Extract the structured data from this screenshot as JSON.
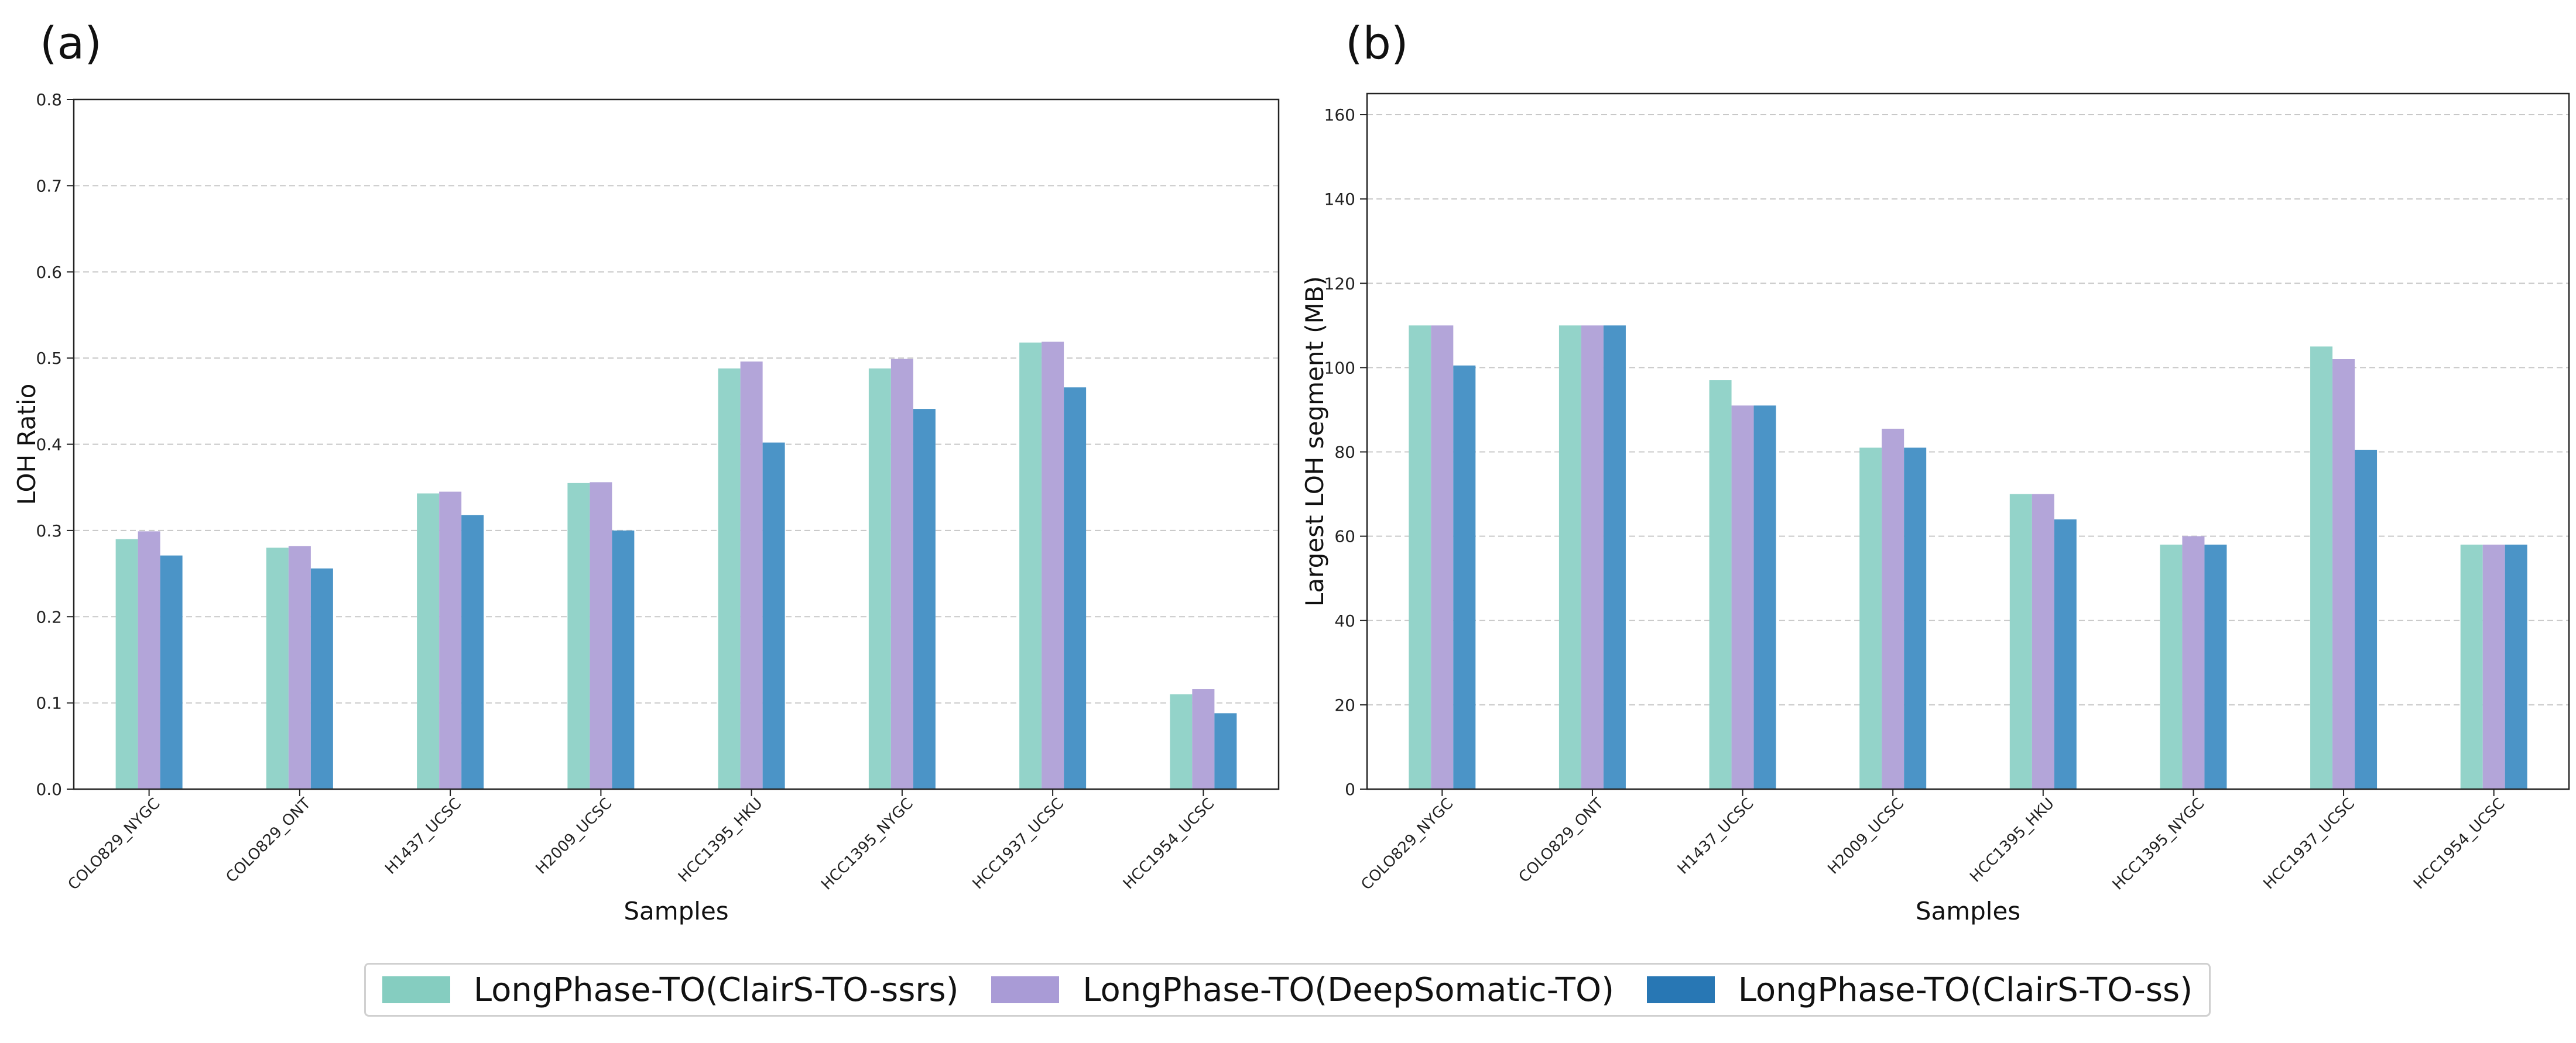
{
  "chart_data": [
    {
      "panel_label": "(a)",
      "type": "bar",
      "xlabel": "Samples",
      "ylabel": "LOH Ratio",
      "ylim": [
        0,
        0.8
      ],
      "yticks": [
        "0.0",
        "0.1",
        "0.2",
        "0.3",
        "0.4",
        "0.5",
        "0.6",
        "0.7",
        "0.8"
      ],
      "grid": "horizontal dashed",
      "categories": [
        "COLO829_NYGC",
        "COLO829_ONT",
        "H1437_UCSC",
        "H2009_UCSC",
        "HCC1395_HKU",
        "HCC1395_NYGC",
        "HCC1937_UCSC",
        "HCC1954_UCSC"
      ],
      "series": [
        {
          "name": "LongPhase-TO(ClairS-TO-ssrs)",
          "color": "#93d3c9",
          "values": [
            0.29,
            0.28,
            0.343,
            0.355,
            0.488,
            0.488,
            0.518,
            0.11
          ]
        },
        {
          "name": "LongPhase-TO(DeepSomatic-TO)",
          "color": "#b3a5d9",
          "values": [
            0.299,
            0.282,
            0.345,
            0.356,
            0.496,
            0.499,
            0.519,
            0.116
          ]
        },
        {
          "name": "LongPhase-TO(ClairS-TO-ss)",
          "color": "#4b94c7",
          "values": [
            0.271,
            0.256,
            0.318,
            0.3,
            0.402,
            0.441,
            0.466,
            0.088
          ]
        }
      ]
    },
    {
      "panel_label": "(b)",
      "type": "bar",
      "xlabel": "Samples",
      "ylabel": "Largest LOH segment (MB)",
      "ylim": [
        0,
        165
      ],
      "yticks": [
        "0",
        "20",
        "40",
        "60",
        "80",
        "100",
        "120",
        "140",
        "160"
      ],
      "grid": "horizontal dashed",
      "categories": [
        "COLO829_NYGC",
        "COLO829_ONT",
        "H1437_UCSC",
        "H2009_UCSC",
        "HCC1395_HKU",
        "HCC1395_NYGC",
        "HCC1937_UCSC",
        "HCC1954_UCSC"
      ],
      "series": [
        {
          "name": "LongPhase-TO(ClairS-TO-ssrs)",
          "color": "#93d3c9",
          "values": [
            110,
            110,
            97,
            81,
            70,
            58,
            105,
            58
          ]
        },
        {
          "name": "LongPhase-TO(DeepSomatic-TO)",
          "color": "#b3a5d9",
          "values": [
            110,
            110,
            91,
            85.5,
            70,
            60,
            102,
            58
          ]
        },
        {
          "name": "LongPhase-TO(ClairS-TO-ss)",
          "color": "#4b94c7",
          "values": [
            100.5,
            110,
            91,
            81,
            64,
            58,
            80.5,
            58
          ]
        }
      ]
    }
  ],
  "legend": {
    "placement": "bottom-center",
    "items": [
      {
        "label": "LongPhase-TO(ClairS-TO-ssrs)",
        "color": "#85cdc0"
      },
      {
        "label": "LongPhase-TO(DeepSomatic-TO)",
        "color": "#a99bd6"
      },
      {
        "label": "LongPhase-TO(ClairS-TO-ss)",
        "color": "#2877b4"
      }
    ]
  }
}
